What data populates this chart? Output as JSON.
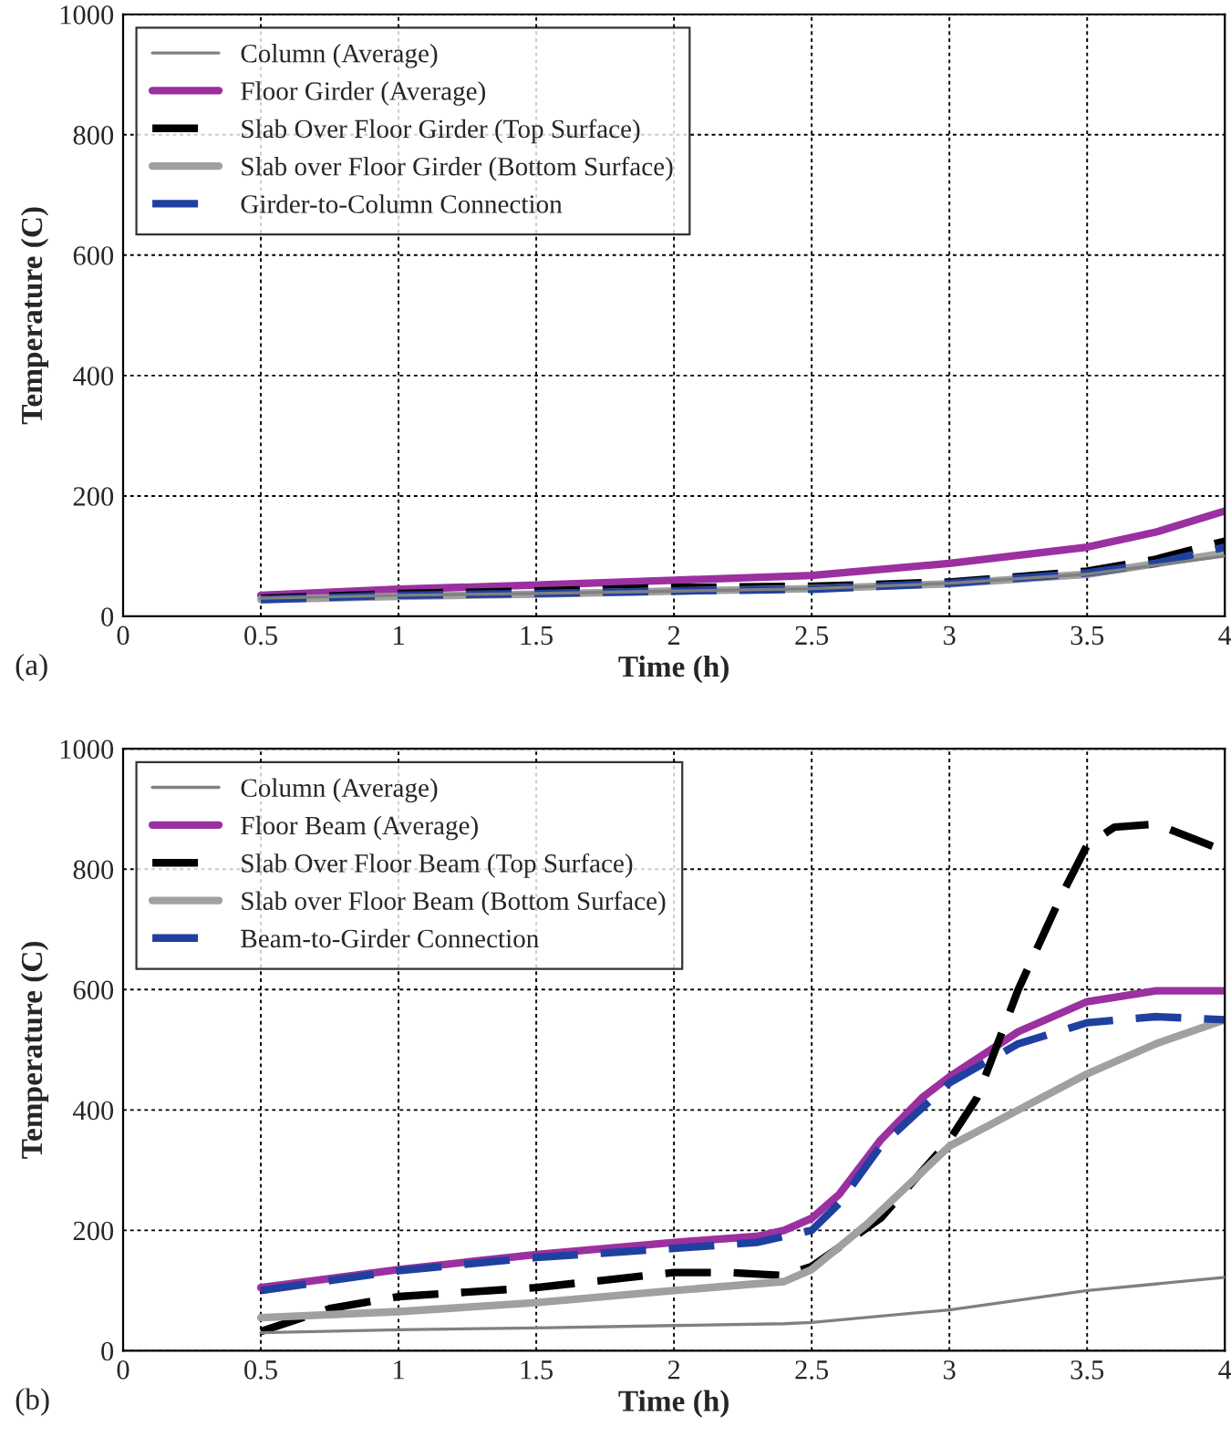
{
  "chart_data": [
    {
      "type": "line",
      "xlabel": "Time (h)",
      "ylabel": "Temperature (C)",
      "annotations": [
        "(a)"
      ],
      "xlim": [
        0,
        4
      ],
      "ylim": [
        0,
        1000
      ],
      "xticks": [
        0,
        0.5,
        1,
        1.5,
        2,
        2.5,
        3,
        3.5,
        4
      ],
      "yticks": [
        0,
        200,
        400,
        600,
        800,
        1000
      ],
      "grid": true,
      "legend": "top left",
      "series": [
        {
          "name": "Column (Average)",
          "color": "#808080",
          "line_style": "solid",
          "x": [
            0.5,
            1,
            1.5,
            2,
            2.5,
            3,
            3.5,
            3.75,
            4
          ],
          "values": [
            30,
            35,
            38,
            42,
            46,
            55,
            70,
            85,
            100
          ]
        },
        {
          "name": "Floor Girder (Average)",
          "color": "#9b30a0",
          "line_style": "solid",
          "x": [
            0.5,
            1,
            1.5,
            2,
            2.5,
            3,
            3.5,
            3.75,
            4
          ],
          "values": [
            35,
            45,
            52,
            60,
            68,
            88,
            115,
            140,
            175
          ]
        },
        {
          "name": "Slab Over Floor Girder (Top Surface)",
          "color": "#000000",
          "line_style": "dashed",
          "x": [
            0.5,
            1,
            1.5,
            2,
            2.5,
            3,
            3.5,
            3.75,
            4
          ],
          "values": [
            30,
            38,
            42,
            48,
            50,
            57,
            75,
            95,
            125
          ]
        },
        {
          "name": "Slab over Floor Girder (Bottom Surface)",
          "color": "#a0a0a0",
          "line_style": "solid",
          "x": [
            0.5,
            1,
            1.5,
            2,
            2.5,
            3,
            3.5,
            4
          ],
          "values": [
            28,
            33,
            37,
            42,
            46,
            54,
            70,
            105
          ]
        },
        {
          "name": "Girder-to-Column Connection",
          "color": "#2040a0",
          "line_style": "dashed",
          "x": [
            0.5,
            1,
            1.5,
            2,
            2.5,
            3,
            3.5,
            3.75,
            4
          ],
          "values": [
            28,
            35,
            38,
            42,
            45,
            55,
            72,
            88,
            115
          ]
        }
      ]
    },
    {
      "type": "line",
      "xlabel": "Time (h)",
      "ylabel": "Temperature (C)",
      "annotations": [
        "(b)"
      ],
      "xlim": [
        0,
        4
      ],
      "ylim": [
        0,
        1000
      ],
      "xticks": [
        0,
        0.5,
        1,
        1.5,
        2,
        2.5,
        3,
        3.5,
        4
      ],
      "yticks": [
        0,
        200,
        400,
        600,
        800,
        1000
      ],
      "grid": true,
      "legend": "top left",
      "series": [
        {
          "name": "Column (Average)",
          "color": "#808080",
          "line_style": "solid",
          "x": [
            0.5,
            1,
            1.5,
            2,
            2.4,
            2.5,
            3,
            3.5,
            4
          ],
          "values": [
            30,
            35,
            38,
            42,
            45,
            47,
            68,
            100,
            122
          ]
        },
        {
          "name": "Floor Beam (Average)",
          "color": "#9b30a0",
          "line_style": "solid",
          "x": [
            0.5,
            1,
            1.5,
            2,
            2.3,
            2.4,
            2.5,
            2.6,
            2.75,
            2.9,
            3,
            3.25,
            3.5,
            3.75,
            4
          ],
          "values": [
            105,
            135,
            160,
            180,
            190,
            200,
            220,
            260,
            350,
            420,
            455,
            530,
            580,
            598,
            598
          ]
        },
        {
          "name": "Slab Over Floor Beam (Top Surface)",
          "color": "#000000",
          "line_style": "dashed",
          "x": [
            0.5,
            0.75,
            1,
            1.5,
            2,
            2.2,
            2.4,
            2.5,
            2.75,
            3,
            3.1,
            3.25,
            3.4,
            3.5,
            3.6,
            3.75,
            4
          ],
          "values": [
            32,
            70,
            90,
            105,
            130,
            130,
            125,
            140,
            220,
            350,
            420,
            600,
            750,
            840,
            870,
            875,
            830
          ]
        },
        {
          "name": "Slab over Floor Beam (Bottom Surface)",
          "color": "#a0a0a0",
          "line_style": "solid",
          "x": [
            0.5,
            1,
            1.5,
            2,
            2.4,
            2.5,
            2.7,
            3,
            3.25,
            3.5,
            3.75,
            4
          ],
          "values": [
            55,
            65,
            80,
            100,
            115,
            135,
            210,
            340,
            400,
            460,
            510,
            550
          ]
        },
        {
          "name": "Beam-to-Girder Connection",
          "color": "#2040a0",
          "line_style": "dashed",
          "x": [
            0.5,
            1,
            1.5,
            2,
            2.3,
            2.5,
            2.6,
            2.75,
            3,
            3.25,
            3.5,
            3.75,
            4
          ],
          "values": [
            100,
            133,
            155,
            170,
            180,
            200,
            245,
            340,
            445,
            510,
            545,
            555,
            550
          ]
        }
      ]
    }
  ]
}
